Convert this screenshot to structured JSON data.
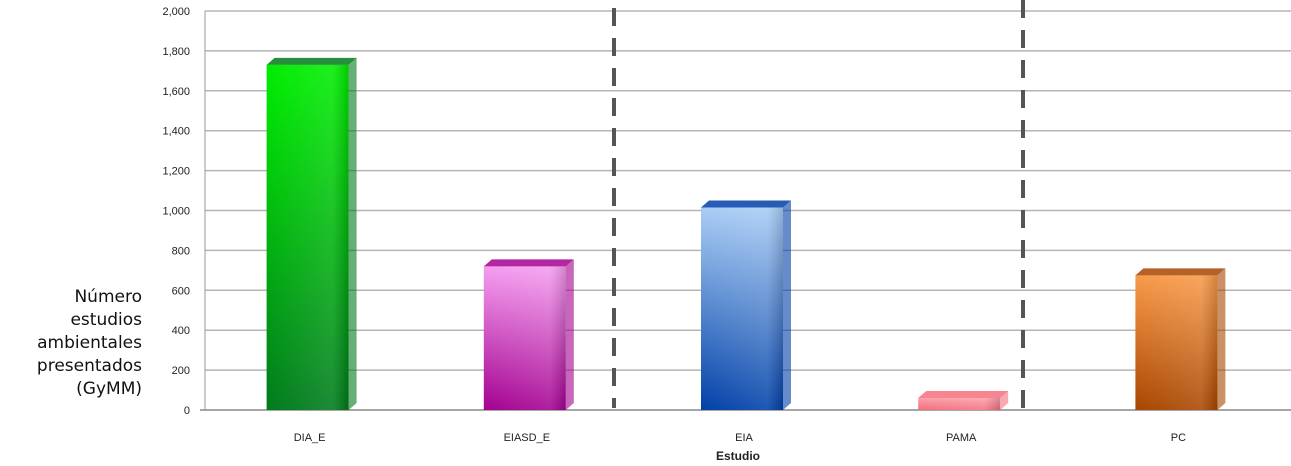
{
  "chart_data": {
    "type": "bar",
    "categories": [
      "DIA_E",
      "EIASD_E",
      "EIA",
      "PAMA",
      "PC"
    ],
    "values": [
      1730,
      720,
      1015,
      60,
      675
    ],
    "xlabel": "Estudio",
    "ylabel_lines": [
      "Número",
      "estudios",
      "ambientales",
      "presentados",
      "(GyMM)"
    ],
    "ylim": [
      0,
      2000
    ],
    "yticks": [
      "0",
      "200",
      "400",
      "600",
      "800",
      "1,000",
      "1,200",
      "1,400",
      "1,600",
      "1,800",
      "2,000"
    ],
    "grid": true,
    "colors": {
      "DIA_E": [
        "#00ee00",
        "#007a1c"
      ],
      "EIASD_E": [
        "#f59df0",
        "#a40090"
      ],
      "EIA": [
        "#a9cdf5",
        "#0040a8"
      ],
      "PAMA": [
        "#f9a0a8",
        "#f46f7e"
      ],
      "PC": [
        "#f89a4a",
        "#a84600"
      ]
    },
    "dashed_dividers": true
  }
}
